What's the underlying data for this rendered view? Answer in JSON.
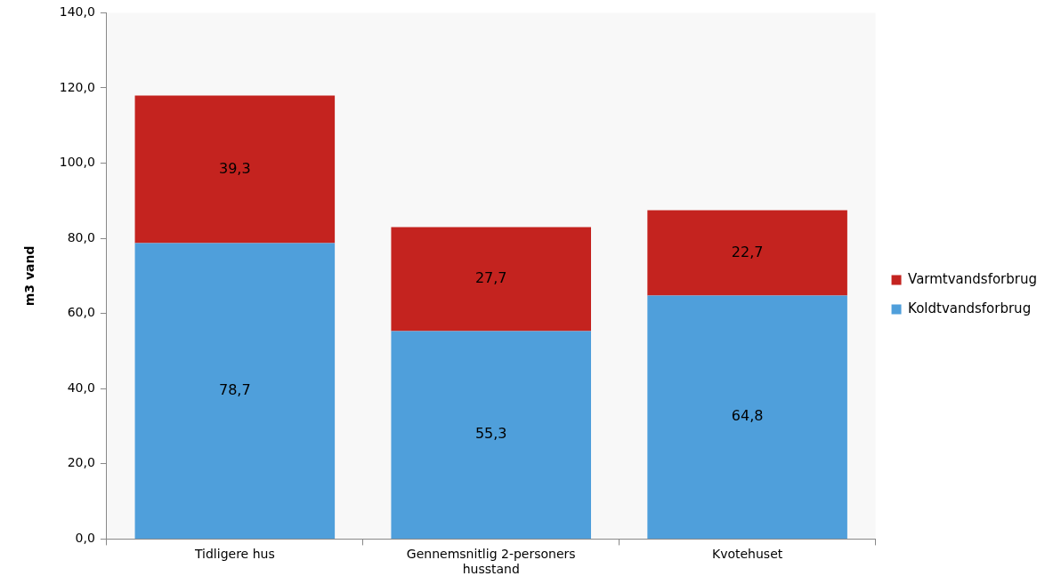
{
  "chart_data": {
    "type": "bar",
    "stacked": true,
    "ylabel": "m3 vand",
    "categories": [
      "Tidligere hus",
      "Gennemsnitlig 2-personers husstand",
      "Kvotehuset"
    ],
    "series": [
      {
        "name": "Koldtvandsforbrug",
        "color": "#4f9fdb",
        "values": [
          78.7,
          55.3,
          64.8
        ],
        "value_labels": [
          "78,7",
          "55,3",
          "64,8"
        ]
      },
      {
        "name": "Varmtvandsforbrug",
        "color": "#c4231f",
        "values": [
          39.3,
          27.7,
          22.7
        ],
        "value_labels": [
          "39,3",
          "27,7",
          "22,7"
        ]
      }
    ],
    "ylim": [
      0,
      140
    ],
    "yticks": [
      {
        "value": 0,
        "label": "0,0"
      },
      {
        "value": 20,
        "label": "20,0"
      },
      {
        "value": 40,
        "label": "40,0"
      },
      {
        "value": 60,
        "label": "60,0"
      },
      {
        "value": 80,
        "label": "80,0"
      },
      {
        "value": 100,
        "label": "100,0"
      },
      {
        "value": 120,
        "label": "120,0"
      },
      {
        "value": 140,
        "label": "140,0"
      }
    ],
    "grid": false,
    "legend": "right"
  }
}
